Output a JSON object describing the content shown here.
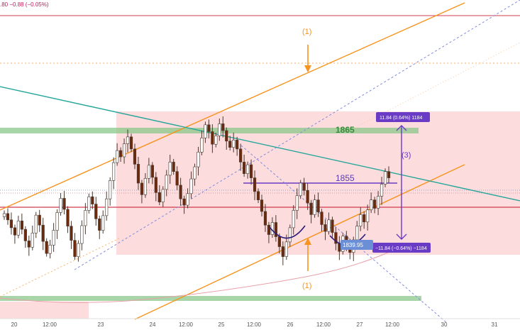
{
  "header": {
    "ticker_text": ".80  −0.88 (−0.05%)"
  },
  "chart_data": {
    "type": "candlestick",
    "instrument_line": ".80 −0.88 (−0.05%)",
    "x_ticks": [
      "20",
      "12:00",
      "23",
      "24",
      "12:00",
      "25",
      "12:00",
      "26",
      "12:00",
      "27",
      "12:00",
      "30",
      "31"
    ],
    "levels": {
      "resistance_zone": 1865,
      "breakout_line": 1855,
      "target_low": 1839.95
    },
    "annotations": {
      "resistance_label": "1865",
      "neckline_label": "1855",
      "target_label": "1839.95",
      "measure_label": "(3)",
      "arrow_top_label": "(1)",
      "arrow_bottom_label": "(1)",
      "range_up": "11.84 (0.64%) 1184",
      "range_down": "−11.84 (−0.64%) −1184"
    },
    "colors": {
      "up": "#ffffff",
      "down": "#6b2a0e",
      "wick": "#4a3a30",
      "channel": "#f7931e",
      "trendline": "#26a69a",
      "zone": "#fbd6d6",
      "support_band": "#8bc88b",
      "measure": "#6a3bc4",
      "pattern": "#2a1a7a",
      "level_red": "#d23b4f"
    },
    "closes": [
      1849.2,
      1848.0,
      1846.5,
      1845.1,
      1847.8,
      1846.2,
      1844.0,
      1842.8,
      1845.5,
      1848.9,
      1847.0,
      1843.9,
      1841.6,
      1843.2,
      1846.0,
      1849.4,
      1852.1,
      1850.0,
      1846.8,
      1844.1,
      1841.0,
      1843.5,
      1846.9,
      1849.8,
      1852.4,
      1851.0,
      1848.2,
      1846.0,
      1848.8,
      1852.0,
      1855.5,
      1858.9,
      1861.2,
      1860.0,
      1862.5,
      1863.8,
      1861.5,
      1858.6,
      1855.0,
      1852.8,
      1855.9,
      1858.4,
      1856.1,
      1853.2,
      1851.4,
      1853.8,
      1856.5,
      1859.0,
      1857.2,
      1854.6,
      1852.0,
      1850.8,
      1853.0,
      1855.8,
      1858.1,
      1860.9,
      1863.6,
      1866.1,
      1864.8,
      1862.4,
      1864.0,
      1866.3,
      1865.0,
      1863.0,
      1861.8,
      1863.2,
      1861.5,
      1859.0,
      1856.8,
      1858.5,
      1856.0,
      1853.4,
      1851.8,
      1849.6,
      1847.0,
      1845.2,
      1847.5,
      1844.8,
      1842.9,
      1841.0,
      1843.8,
      1846.5,
      1849.8,
      1852.6,
      1855.0,
      1853.6,
      1851.2,
      1849.0,
      1851.8,
      1849.5,
      1847.1,
      1845.8,
      1848.0,
      1845.6,
      1843.5,
      1842.0,
      1844.9,
      1843.0,
      1841.8,
      1844.2,
      1846.8,
      1849.0,
      1847.6,
      1849.9,
      1851.8,
      1850.2,
      1852.5,
      1854.8,
      1857.2,
      1856.0
    ]
  }
}
